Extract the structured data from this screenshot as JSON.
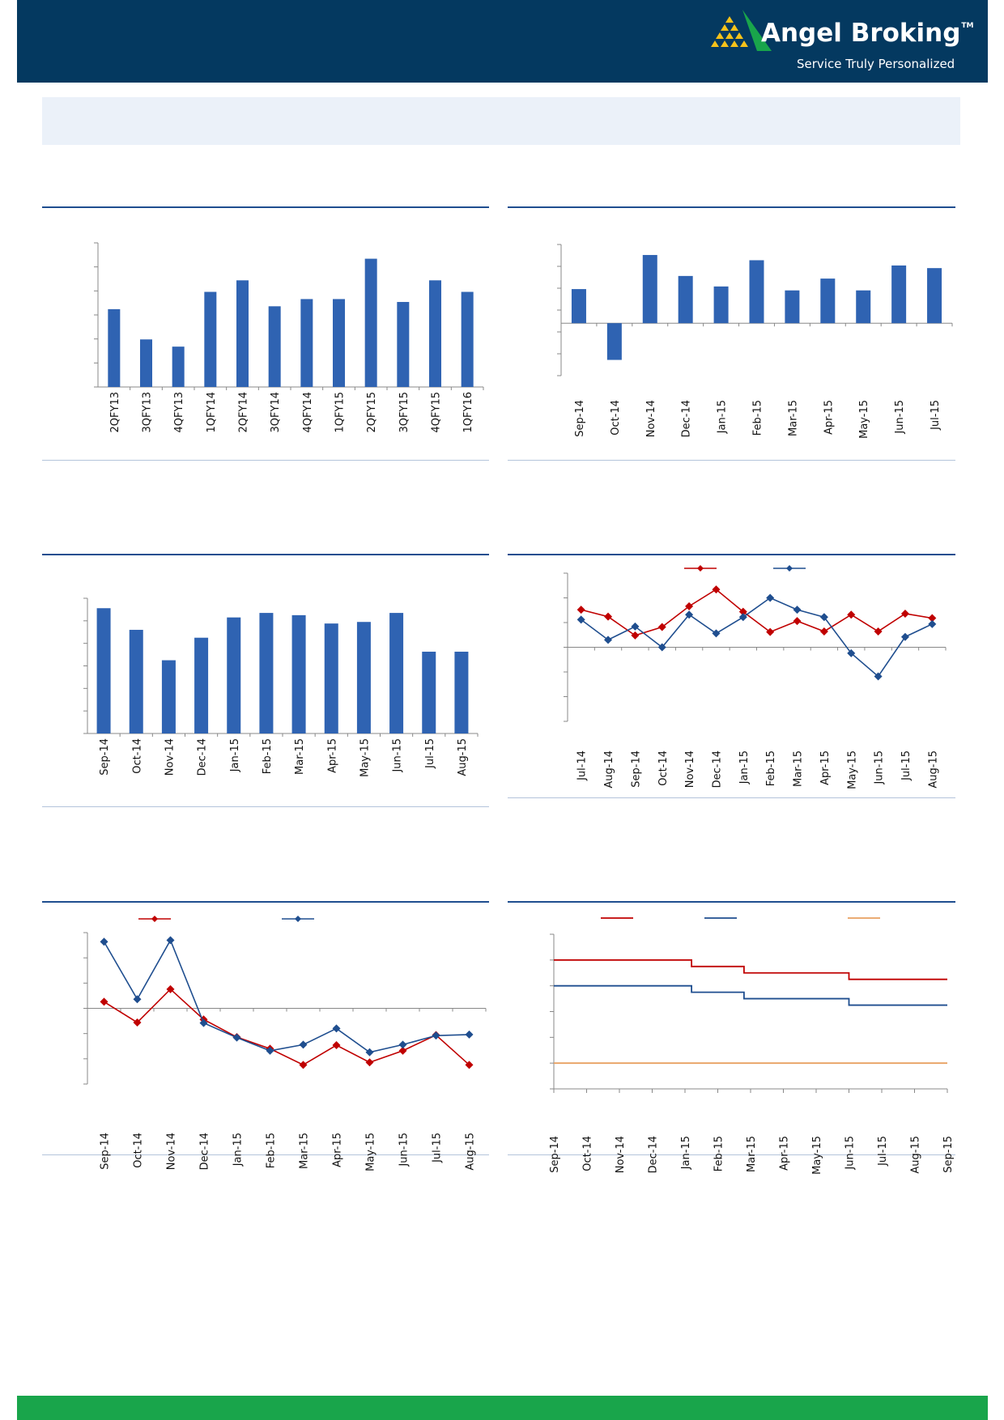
{
  "brand": {
    "name": "Angel Broking",
    "trademark": "TM",
    "tagline": "Service Truly Personalized",
    "colors": {
      "header_bg": "#043960",
      "logo_green": "#19a54b",
      "logo_yellow": "#f5c21a",
      "footer": "#19a54b",
      "band": "#ebf1f9",
      "rule": "#1f4e8f"
    }
  },
  "chart_data": [
    {
      "id": "chart1",
      "type": "bar",
      "categories": [
        "2QFY13",
        "3QFY13",
        "4QFY13",
        "1QFY14",
        "2QFY14",
        "3QFY14",
        "4QFY14",
        "1QFY15",
        "2QFY15",
        "3QFY15",
        "4QFY15",
        "1QFY16"
      ],
      "values": [
        5.4,
        3.3,
        2.8,
        6.6,
        7.4,
        5.6,
        6.1,
        6.1,
        8.9,
        5.9,
        7.4,
        6.6
      ],
      "ylim": [
        0,
        10
      ],
      "color": "#2f63b2",
      "title": "",
      "xlabel": "",
      "ylabel": ""
    },
    {
      "id": "chart2",
      "type": "bar",
      "categories": [
        "Sep-14",
        "Oct-14",
        "Nov-14",
        "Dec-14",
        "Jan-15",
        "Feb-15",
        "Mar-15",
        "Apr-15",
        "May-15",
        "Jun-15",
        "Jul-15"
      ],
      "values": [
        2.6,
        -2.8,
        5.2,
        3.6,
        2.8,
        4.8,
        2.5,
        3.4,
        2.5,
        4.4,
        4.2
      ],
      "ylim": [
        -4,
        6
      ],
      "color": "#2f63b2",
      "title": "",
      "xlabel": "",
      "ylabel": ""
    },
    {
      "id": "chart3",
      "type": "bar",
      "categories": [
        "Sep-14",
        "Oct-14",
        "Nov-14",
        "Dec-14",
        "Jan-15",
        "Feb-15",
        "Mar-15",
        "Apr-15",
        "May-15",
        "Jun-15",
        "Jul-15",
        "Aug-15"
      ],
      "values": [
        55.6,
        46.0,
        32.5,
        42.5,
        51.5,
        53.5,
        52.5,
        48.8,
        49.5,
        53.5,
        36.3,
        36.3
      ],
      "ylim": [
        0,
        60
      ],
      "color": "#2f63b2",
      "title": "",
      "xlabel": "",
      "ylabel": ""
    },
    {
      "id": "chart4",
      "type": "line",
      "categories": [
        "Jul-14",
        "Aug-14",
        "Sep-14",
        "Oct-14",
        "Nov-14",
        "Dec-14",
        "Jan-15",
        "Feb-15",
        "Mar-15",
        "Apr-15",
        "May-15",
        "Jun-15",
        "Jul-15",
        "Aug-15"
      ],
      "series": [
        {
          "color": "#c00000",
          "values": [
            7.6,
            6.2,
            2.4,
            4.1,
            8.3,
            11.7,
            7.2,
            3.1,
            5.3,
            3.2,
            6.6,
            3.2,
            6.8,
            5.9
          ]
        },
        {
          "color": "#1f4e8f",
          "values": [
            5.6,
            1.5,
            4.2,
            0.0,
            6.6,
            2.8,
            6.1,
            10.0,
            7.6,
            6.1,
            -1.2,
            -5.9,
            2.1,
            4.7
          ]
        }
      ],
      "ylim": [
        -15,
        15
      ],
      "title": "",
      "xlabel": "",
      "ylabel": ""
    },
    {
      "id": "chart5",
      "type": "line",
      "categories": [
        "Sep-14",
        "Oct-14",
        "Nov-14",
        "Dec-14",
        "Jan-15",
        "Feb-15",
        "Mar-15",
        "Apr-15",
        "May-15",
        "Jun-15",
        "Jul-15",
        "Aug-15"
      ],
      "series": [
        {
          "color": "#c00000",
          "values": [
            1.3,
            -2.8,
            3.8,
            -2.2,
            -5.7,
            -8.0,
            -11.2,
            -7.3,
            -10.7,
            -8.4,
            -5.3,
            -11.2
          ]
        },
        {
          "color": "#1f4e8f",
          "values": [
            13.2,
            1.8,
            13.5,
            -2.9,
            -5.8,
            -8.4,
            -7.2,
            -4.0,
            -8.7,
            -7.2,
            -5.4,
            -5.2
          ]
        }
      ],
      "ylim": [
        -15,
        15
      ],
      "title": "",
      "xlabel": "",
      "ylabel": ""
    },
    {
      "id": "chart6",
      "type": "line",
      "categories": [
        "Sep-14",
        "Oct-14",
        "Nov-14",
        "Dec-14",
        "Jan-15",
        "Feb-15",
        "Mar-15",
        "Apr-15",
        "May-15",
        "Jun-15",
        "Jul-15",
        "Aug-15",
        "Sep-15"
      ],
      "series": [
        {
          "color": "#c00000",
          "steps": [
            [
              0,
              8.0
            ],
            [
              4.2,
              7.75
            ],
            [
              5.8,
              7.5
            ],
            [
              9.0,
              7.25
            ],
            [
              12.0,
              7.25
            ]
          ]
        },
        {
          "color": "#1f4e8f",
          "steps": [
            [
              0,
              7.0
            ],
            [
              4.2,
              6.75
            ],
            [
              5.8,
              6.5
            ],
            [
              9.0,
              6.25
            ],
            [
              12.0,
              6.25
            ]
          ]
        },
        {
          "color": "#e8a060",
          "steps": [
            [
              0,
              4.0
            ],
            [
              12.0,
              4.0
            ]
          ]
        }
      ],
      "ylim": [
        3,
        9
      ],
      "title": "",
      "xlabel": "",
      "ylabel": ""
    }
  ]
}
